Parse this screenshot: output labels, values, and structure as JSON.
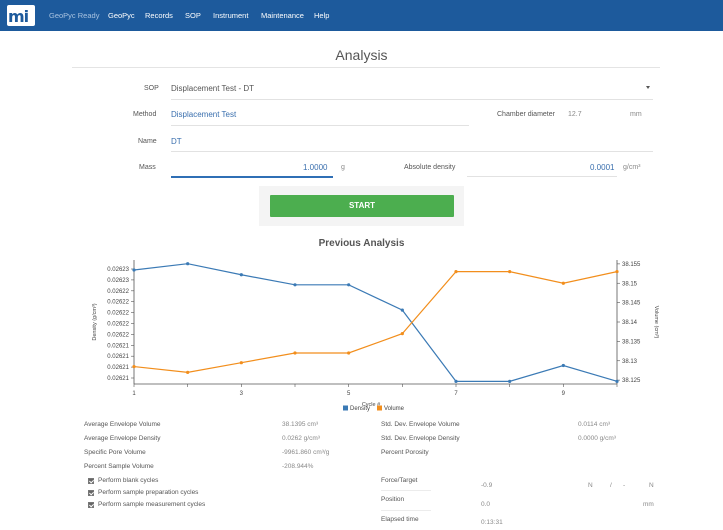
{
  "nav": {
    "logo": "mi",
    "brand": "GeoPyc Ready",
    "items": [
      "GeoPyc",
      "Records",
      "SOP",
      "Instrument",
      "Maintenance",
      "Help"
    ]
  },
  "page_title": "Analysis",
  "form": {
    "sop_label": "SOP",
    "sop_value": "Displacement Test - DT",
    "method_label": "Method",
    "method_value": "Displacement Test",
    "chamber_label": "Chamber diameter",
    "chamber_value": "12.7",
    "chamber_unit": "mm",
    "name_label": "Name",
    "name_value": "DT",
    "mass_label": "Mass",
    "mass_value": "1.0000",
    "mass_unit": "g",
    "abs_density_label": "Absolute density",
    "abs_density_value": "0.0001",
    "abs_density_unit": "g/cm³"
  },
  "start_label": "START",
  "chart_title": "Previous Analysis",
  "chart_data": {
    "type": "line",
    "x": [
      1,
      2,
      3,
      4,
      5,
      6,
      7,
      8,
      9,
      10
    ],
    "xlabel": "Cycle #",
    "x_ticks": [
      "1",
      "3",
      "5",
      "7",
      "9"
    ],
    "y_left_label": "Density (g/cm³)",
    "y_left_ticks": [
      "0.02623",
      "0.02623",
      "0.02622",
      "0.02622",
      "0.02622",
      "0.02622",
      "0.02622",
      "0.02621",
      "0.02621",
      "0.02621",
      "0.02621"
    ],
    "y_right_label": "Volume (cm³)",
    "y_right_ticks": [
      "38.155",
      "38.15",
      "38.145",
      "38.14",
      "38.135",
      "38.13",
      "38.125"
    ],
    "series": [
      {
        "name": "Density",
        "axis": "left",
        "color": "#3b7ab5",
        "values": [
          0.0262306,
          0.0262318,
          0.0262297,
          0.0262278,
          0.0262278,
          0.026223,
          0.0262095,
          0.0262095,
          0.0262125,
          0.0262095
        ]
      },
      {
        "name": "Volume",
        "axis": "right",
        "color": "#f28e1c",
        "values": [
          38.1285,
          38.127,
          38.1295,
          38.132,
          38.132,
          38.137,
          38.153,
          38.153,
          38.15,
          38.153
        ]
      }
    ],
    "legend_placement": "bottom-center",
    "grid": false
  },
  "stats_left": [
    {
      "label": "Average Envelope Volume",
      "value": "38.1395 cm³"
    },
    {
      "label": "Average Envelope Density",
      "value": "0.0262 g/cm³"
    },
    {
      "label": "Specific Pore Volume",
      "value": "-9961.860 cm³/g"
    },
    {
      "label": "Percent Sample Volume",
      "value": "-208.944%"
    }
  ],
  "stats_right": [
    {
      "label": "Std. Dev. Envelope Volume",
      "value": "0.0114 cm³"
    },
    {
      "label": "Std. Dev. Envelope Density",
      "value": "0.0000 g/cm³"
    },
    {
      "label": "Percent Porosity",
      "value": ""
    }
  ],
  "checkboxes": [
    "Perform blank cycles",
    "Perform sample preparation cycles",
    "Perform sample measurement cycles"
  ],
  "readouts": {
    "force_label": "Force/Target",
    "force_value": "-0.9",
    "force_unit_1": "N",
    "force_sep": "/",
    "force_target": "-",
    "force_unit_2": "N",
    "position_label": "Position",
    "position_value": "0.0",
    "position_unit": "mm",
    "elapsed_label": "Elapsed time",
    "elapsed_value": "0:13:31"
  }
}
